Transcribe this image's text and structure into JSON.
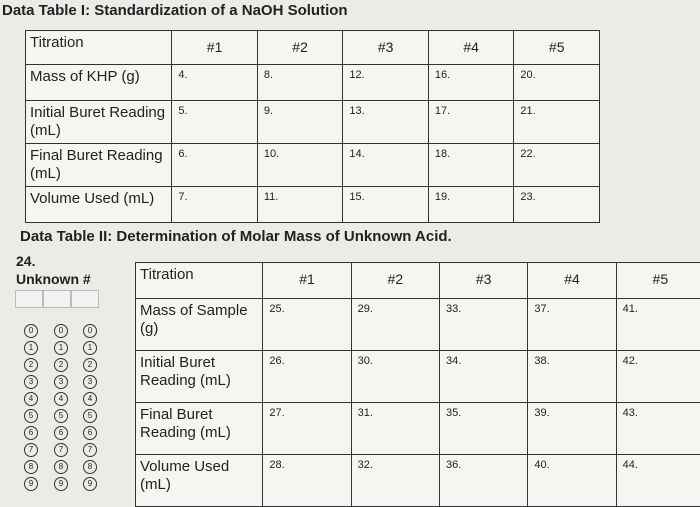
{
  "table1": {
    "title": "Data Table I: Standardization of a NaOH Solution",
    "header": [
      "Titration",
      "#1",
      "#2",
      "#3",
      "#4",
      "#5"
    ],
    "rows": [
      {
        "label": "Mass of KHP (g)",
        "cells": [
          "4.",
          "8.",
          "12.",
          "16.",
          "20."
        ]
      },
      {
        "label": "Initial Buret Reading (mL)",
        "cells": [
          "5.",
          "9.",
          "13.",
          "17.",
          "21."
        ]
      },
      {
        "label": "Final Buret Reading (mL)",
        "cells": [
          "6.",
          "10.",
          "14.",
          "18.",
          "22."
        ]
      },
      {
        "label": "Volume Used (mL)",
        "cells": [
          "7.",
          "11.",
          "15.",
          "19.",
          "23."
        ]
      }
    ]
  },
  "table2": {
    "title": "Data Table II: Determination of Molar Mass of Unknown Acid.",
    "header": [
      "Titration",
      "#1",
      "#2",
      "#3",
      "#4",
      "#5"
    ],
    "rows": [
      {
        "label": "Mass of Sample (g)",
        "cells": [
          "25.",
          "29.",
          "33.",
          "37.",
          "41."
        ]
      },
      {
        "label": "Initial Buret Reading (mL)",
        "cells": [
          "26.",
          "30.",
          "34.",
          "38.",
          "42."
        ]
      },
      {
        "label": "Final Buret Reading (mL)",
        "cells": [
          "27.",
          "31.",
          "35.",
          "39.",
          "43."
        ]
      },
      {
        "label": "Volume Used (mL)",
        "cells": [
          "28.",
          "32.",
          "36.",
          "40.",
          "44."
        ]
      }
    ]
  },
  "unknown": {
    "number": "24.",
    "label": "Unknown #",
    "digits": [
      "0",
      "1",
      "2",
      "3",
      "4",
      "5",
      "6",
      "7",
      "8",
      "9"
    ]
  }
}
